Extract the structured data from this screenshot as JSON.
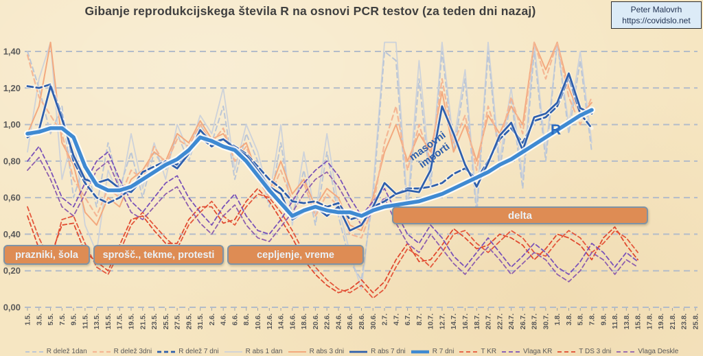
{
  "header": {
    "title": "Gibanje reprodukcijskega števila R na osnovi PCR testov (za teden dni nazaj)",
    "credit_line1": "Peter Malovrh",
    "credit_line2": "https://covidslo.net"
  },
  "colors": {
    "background": "#F6E6C2",
    "gridline": "#B3BCC9",
    "axis_text": "#595959",
    "title_text": "#3F3F3F",
    "annotation_box_fill": "#DE8C54",
    "annotation_box_border": "#7E93A6",
    "annotation_box_text": "#EAF1F7",
    "credit_box_fill": "#DCEBF7",
    "r_main_blue": "#3F8AD2",
    "dark_blue": "#2E5FAC"
  },
  "chart_data": {
    "type": "line",
    "title": "Gibanje reprodukcijskega števila R na osnovi PCR testov (za teden dni nazaj)",
    "xlabel": "",
    "ylabel": "",
    "ylim": [
      0.0,
      1.45
    ],
    "grid": "horizontal-dashed",
    "legend_position": "bottom",
    "y_ticks": [
      {
        "label": "0,00",
        "value": 0.0
      },
      {
        "label": "0,20",
        "value": 0.2
      },
      {
        "label": "0,40",
        "value": 0.4
      },
      {
        "label": "0,60",
        "value": 0.6
      },
      {
        "label": "0,80",
        "value": 0.8
      },
      {
        "label": "1,00",
        "value": 1.0
      },
      {
        "label": "1,20",
        "value": 1.2
      },
      {
        "label": "1,40",
        "value": 1.4
      }
    ],
    "x_tick_labels": [
      "1.5.",
      "3.5.",
      "5.5.",
      "7.5.",
      "9.5.",
      "11.5.",
      "13.5.",
      "15.5.",
      "17.5.",
      "19.5.",
      "21.5.",
      "23.5.",
      "25.5.",
      "27.5.",
      "29.5.",
      "31.5.",
      "2.6.",
      "4.6.",
      "6.6.",
      "8.6.",
      "10.6.",
      "12.6.",
      "14.6.",
      "16.6.",
      "18.6.",
      "20.6.",
      "22.6.",
      "24.6.",
      "26.6.",
      "28.6.",
      "30.6.",
      "2.7.",
      "4.7.",
      "6.7.",
      "8.7.",
      "10.7.",
      "12.7.",
      "14.7.",
      "16.7.",
      "18.7.",
      "20.7.",
      "22.7.",
      "24.7.",
      "26.7.",
      "28.7.",
      "30.7.",
      "1.8.",
      "3.8.",
      "5.8.",
      "7.8.",
      "9.8.",
      "11.8.",
      "13.8.",
      "15.8.",
      "17.8.",
      "19.8.",
      "21.8.",
      "23.8.",
      "25.8."
    ],
    "annotations": {
      "box1": {
        "label": "prazniki, šola"
      },
      "box2": {
        "label": "sprošč., tekme, protesti"
      },
      "box3": {
        "label": "cepljenje, vreme"
      },
      "box4": {
        "label": "delta"
      },
      "masovni_line1": "masovni",
      "masovni_line2": "importi",
      "r_label": "R"
    },
    "series": [
      {
        "name": "R abs 1 dan",
        "color": "#CDD2DA",
        "width": 1.8,
        "dash": null,
        "glow": false,
        "start_day": 0,
        "step_days": 2,
        "values": [
          0.85,
          1.25,
          1.45,
          0.7,
          0.95,
          0.45,
          0.3,
          0.75,
          0.6,
          0.95,
          0.65,
          0.9,
          0.7,
          1.0,
          0.85,
          1.05,
          0.95,
          1.2,
          0.75,
          1.0,
          0.85,
          0.6,
          1.0,
          0.45,
          0.85,
          0.5,
          0.95,
          0.55,
          0.3,
          0.1,
          0.65,
          1.45,
          1.45,
          0.55,
          1.35,
          0.7,
          1.45,
          0.9,
          1.3,
          0.55,
          1.45,
          0.8,
          1.2,
          0.7,
          1.45,
          0.85,
          1.45,
          1.0,
          1.4,
          0.9
        ]
      },
      {
        "name": "R delež 1dan",
        "color": "#BBC6D6",
        "width": 2.0,
        "dash": "7 5",
        "glow": false,
        "start_day": 0,
        "step_days": 2,
        "values": [
          1.4,
          1.2,
          0.95,
          1.1,
          0.6,
          0.8,
          0.55,
          0.9,
          0.65,
          0.85,
          0.6,
          0.85,
          0.75,
          0.95,
          0.8,
          1.0,
          0.9,
          1.1,
          0.7,
          0.95,
          0.8,
          0.55,
          0.9,
          0.5,
          0.75,
          0.45,
          0.85,
          0.5,
          0.25,
          0.15,
          0.6,
          1.4,
          1.35,
          0.5,
          1.25,
          0.65,
          1.4,
          0.85,
          1.25,
          0.5,
          1.4,
          0.75,
          1.15,
          0.65,
          1.4,
          0.8,
          1.45,
          0.95,
          1.35,
          0.85
        ]
      },
      {
        "name": "R abs 3 dni",
        "color": "#F3A97E",
        "width": 2.0,
        "dash": null,
        "glow": false,
        "start_day": 0,
        "step_days": 2,
        "values": [
          0.95,
          1.1,
          1.45,
          0.9,
          0.78,
          0.52,
          0.45,
          0.6,
          0.55,
          0.7,
          0.75,
          0.85,
          0.8,
          0.95,
          0.9,
          1.02,
          0.92,
          0.95,
          0.85,
          0.9,
          0.72,
          0.63,
          0.8,
          0.62,
          0.7,
          0.55,
          0.65,
          0.6,
          0.45,
          0.42,
          0.6,
          0.85,
          1.0,
          0.8,
          0.95,
          0.85,
          1.18,
          0.85,
          1.0,
          0.8,
          1.05,
          0.95,
          1.1,
          1.0,
          1.45,
          1.3,
          1.45,
          1.2,
          1.05,
          1.12
        ]
      },
      {
        "name": "R delež 3dni",
        "color": "#F4B694",
        "width": 2.2,
        "dash": "7 5",
        "glow": false,
        "start_day": 0,
        "step_days": 2,
        "values": [
          1.38,
          1.15,
          1.05,
          0.95,
          0.7,
          0.6,
          0.5,
          0.65,
          0.6,
          0.75,
          0.7,
          0.88,
          0.78,
          0.92,
          0.88,
          1.0,
          0.9,
          0.98,
          0.8,
          0.88,
          0.7,
          0.6,
          0.75,
          0.58,
          0.68,
          0.5,
          0.62,
          0.55,
          0.4,
          0.38,
          0.55,
          0.9,
          1.1,
          0.75,
          1.0,
          0.8,
          1.25,
          0.9,
          1.05,
          0.75,
          1.1,
          0.9,
          1.15,
          0.95,
          1.45,
          1.25,
          1.45,
          1.15,
          1.0,
          1.15
        ]
      },
      {
        "name": "T KR",
        "color": "#E4573C",
        "width": 1.8,
        "dash": "6 4",
        "glow": false,
        "start_day": 0,
        "step_days": 2,
        "values": [
          0.55,
          0.38,
          0.25,
          0.48,
          0.5,
          0.35,
          0.22,
          0.18,
          0.3,
          0.45,
          0.52,
          0.45,
          0.38,
          0.32,
          0.45,
          0.52,
          0.58,
          0.5,
          0.45,
          0.55,
          0.62,
          0.6,
          0.52,
          0.42,
          0.3,
          0.22,
          0.15,
          0.1,
          0.08,
          0.12,
          0.05,
          0.1,
          0.22,
          0.32,
          0.28,
          0.22,
          0.3,
          0.4,
          0.42,
          0.35,
          0.3,
          0.36,
          0.42,
          0.38,
          0.3,
          0.28,
          0.36,
          0.42,
          0.38,
          0.3,
          0.35,
          0.42,
          0.38,
          0.3
        ]
      },
      {
        "name": "T DS 3 dni",
        "color": "#E0492F",
        "width": 1.8,
        "dash": "6 4",
        "glow": false,
        "start_day": 0,
        "step_days": 2,
        "values": [
          0.5,
          0.32,
          0.28,
          0.45,
          0.46,
          0.3,
          0.25,
          0.2,
          0.34,
          0.48,
          0.5,
          0.42,
          0.35,
          0.35,
          0.48,
          0.55,
          0.55,
          0.46,
          0.48,
          0.58,
          0.65,
          0.58,
          0.48,
          0.38,
          0.26,
          0.18,
          0.12,
          0.08,
          0.1,
          0.15,
          0.08,
          0.14,
          0.26,
          0.35,
          0.25,
          0.26,
          0.34,
          0.43,
          0.38,
          0.32,
          0.34,
          0.4,
          0.38,
          0.34,
          0.26,
          0.32,
          0.4,
          0.38,
          0.34,
          0.26,
          0.38,
          0.44,
          0.34,
          0.26
        ]
      },
      {
        "name": "Vlaga KR",
        "color": "#7A52B8",
        "width": 1.8,
        "dash": "6 4",
        "glow": false,
        "start_day": 0,
        "step_days": 2,
        "values": [
          0.8,
          0.88,
          0.75,
          0.6,
          0.55,
          0.68,
          0.8,
          0.85,
          0.7,
          0.58,
          0.52,
          0.6,
          0.68,
          0.72,
          0.6,
          0.52,
          0.45,
          0.55,
          0.62,
          0.5,
          0.42,
          0.4,
          0.48,
          0.58,
          0.68,
          0.75,
          0.8,
          0.72,
          0.6,
          0.5,
          0.58,
          0.65,
          0.52,
          0.4,
          0.35,
          0.45,
          0.38,
          0.28,
          0.22,
          0.3,
          0.38,
          0.3,
          0.22,
          0.28,
          0.35,
          0.3,
          0.22,
          0.18,
          0.25,
          0.35,
          0.3,
          0.22,
          0.3,
          0.25
        ]
      },
      {
        "name": "Vlaga Deskle",
        "color": "#8E5FAE",
        "width": 1.8,
        "dash": "6 4",
        "glow": false,
        "start_day": 0,
        "step_days": 2,
        "values": [
          0.75,
          0.82,
          0.7,
          0.55,
          0.5,
          0.62,
          0.75,
          0.8,
          0.65,
          0.52,
          0.48,
          0.55,
          0.62,
          0.66,
          0.55,
          0.46,
          0.4,
          0.5,
          0.56,
          0.45,
          0.38,
          0.36,
          0.44,
          0.52,
          0.62,
          0.7,
          0.74,
          0.66,
          0.55,
          0.45,
          0.52,
          0.6,
          0.46,
          0.35,
          0.3,
          0.4,
          0.32,
          0.24,
          0.18,
          0.26,
          0.33,
          0.26,
          0.18,
          0.24,
          0.3,
          0.26,
          0.18,
          0.14,
          0.2,
          0.3,
          0.26,
          0.18,
          0.26,
          0.22
        ]
      },
      {
        "name": "R delež 7 dni",
        "color": "#2E5FAC",
        "width": 2.8,
        "dash": "8 5",
        "glow": true,
        "start_day": 0,
        "step_days": 2,
        "values": [
          1.21,
          1.2,
          1.22,
          1.05,
          0.8,
          0.68,
          0.6,
          0.57,
          0.6,
          0.65,
          0.74,
          0.77,
          0.8,
          0.78,
          0.85,
          0.93,
          0.88,
          0.92,
          0.88,
          0.84,
          0.77,
          0.7,
          0.65,
          0.58,
          0.57,
          0.58,
          0.55,
          0.57,
          0.48,
          0.5,
          0.55,
          0.58,
          0.62,
          0.65,
          0.65,
          0.66,
          0.68,
          0.73,
          0.76,
          0.7,
          0.8,
          0.92,
          0.98,
          0.9,
          1.02,
          1.04,
          1.1,
          1.26,
          1.06,
          0.98
        ]
      },
      {
        "name": "R abs 7 dni",
        "color": "#2E5FAC",
        "width": 2.8,
        "dash": null,
        "glow": true,
        "start_day": 0,
        "step_days": 2,
        "values": [
          0.93,
          0.97,
          1.21,
          1.03,
          0.83,
          0.7,
          0.68,
          0.7,
          0.65,
          0.63,
          0.7,
          0.74,
          0.8,
          0.76,
          0.84,
          0.97,
          0.9,
          0.92,
          0.87,
          0.83,
          0.75,
          0.66,
          0.62,
          0.48,
          0.52,
          0.55,
          0.5,
          0.55,
          0.42,
          0.45,
          0.55,
          0.68,
          0.62,
          0.64,
          0.63,
          0.75,
          1.1,
          0.95,
          0.78,
          0.66,
          0.79,
          0.94,
          1.01,
          0.86,
          1.04,
          1.06,
          1.12,
          1.28,
          1.09,
          1.06
        ]
      },
      {
        "name": "R 7 dni",
        "color": "#3F8AD2",
        "width": 5.5,
        "dash": null,
        "glow": true,
        "start_day": 0,
        "step_days": 2,
        "values": [
          0.95,
          0.96,
          0.98,
          0.98,
          0.93,
          0.77,
          0.67,
          0.64,
          0.64,
          0.66,
          0.7,
          0.74,
          0.78,
          0.81,
          0.86,
          0.93,
          0.91,
          0.88,
          0.86,
          0.8,
          0.72,
          0.64,
          0.57,
          0.5,
          0.53,
          0.55,
          0.53,
          0.52,
          0.52,
          0.5,
          0.53,
          0.55,
          0.56,
          0.57,
          0.58,
          0.6,
          0.62,
          0.65,
          0.68,
          0.71,
          0.74,
          0.78,
          0.81,
          0.85,
          0.89,
          0.93,
          0.97,
          1.01,
          1.05,
          1.08
        ]
      }
    ]
  },
  "legend": {
    "items": [
      "R delež 1dan",
      "R delež 3dni",
      "R delež 7 dni",
      "R abs 1 dan",
      "R abs 3 dni",
      "R abs 7 dni",
      "R 7 dni",
      "T KR",
      "Vlaga KR",
      "T DS 3 dni",
      "Vlaga Deskle"
    ]
  }
}
